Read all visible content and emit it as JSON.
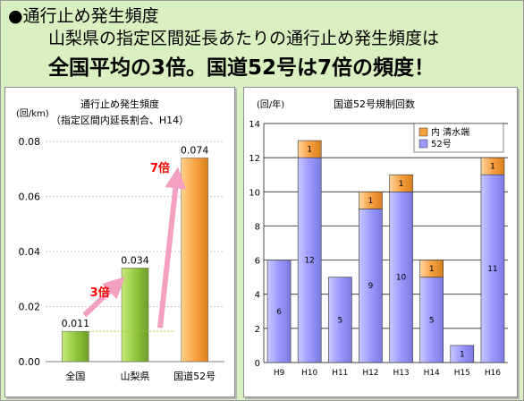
{
  "header": {
    "title": "●通行止め発生頻度",
    "subtitle": "山梨県の指定区間延長あたりの通行止め発生頻度は",
    "headline": "全国平均の3倍。国道52号は7倍の頻度！"
  },
  "colors": {
    "background": "#d9f0c0",
    "green_bar": "#8fc63a",
    "orange_bar": "#f7a040",
    "lavender_bar": "#9999ff",
    "pink_arrow": "#f4a0c0",
    "red_text": "#ff0000"
  },
  "chart_data": [
    {
      "type": "bar",
      "title": "通行止め発生頻度",
      "subtitle": "（指定区間内延長割合、H14）",
      "ylabel": "(回/km)",
      "ylim": [
        0,
        0.08
      ],
      "yticks": [
        "0.00",
        "0.02",
        "0.04",
        "0.06",
        "0.08"
      ],
      "categories": [
        "全国",
        "山梨県",
        "国道52号"
      ],
      "values": [
        0.011,
        0.034,
        0.074
      ],
      "value_labels": [
        "0.011",
        "0.034",
        "0.074"
      ],
      "annotations": [
        "3倍",
        "7倍"
      ],
      "grid": true
    },
    {
      "type": "bar",
      "stacked": true,
      "title": "国道52号規制回数",
      "ylabel": "(回/年)",
      "ylim": [
        0,
        14
      ],
      "yticks": [
        "0",
        "2",
        "4",
        "6",
        "8",
        "10",
        "12",
        "14"
      ],
      "categories": [
        "H9",
        "H10",
        "H11",
        "H12",
        "H13",
        "H14",
        "H15",
        "H16"
      ],
      "series": [
        {
          "name": "52号",
          "values": [
            6,
            12,
            5,
            9,
            10,
            5,
            1,
            11
          ]
        },
        {
          "name": "内 清水端",
          "values": [
            0,
            1,
            0,
            1,
            1,
            1,
            0,
            1
          ]
        }
      ],
      "legend": "top-right",
      "grid": true
    }
  ]
}
